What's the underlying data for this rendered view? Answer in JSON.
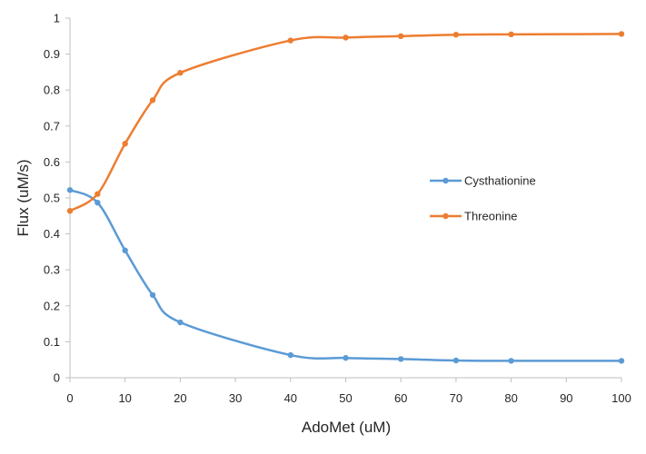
{
  "chart_data": {
    "type": "line",
    "title": "",
    "xlabel": "AdoMet (uM)",
    "ylabel": "Flux (uM/s)",
    "xlim": [
      0,
      100
    ],
    "ylim": [
      0,
      1
    ],
    "xticks": [
      0,
      10,
      20,
      30,
      40,
      50,
      60,
      70,
      80,
      90,
      100
    ],
    "yticks": [
      0,
      0.1,
      0.2,
      0.3,
      0.4,
      0.5,
      0.6,
      0.7,
      0.8,
      0.9,
      1
    ],
    "grid": false,
    "legend_position": "right",
    "x": [
      0,
      5,
      10,
      15,
      20,
      40,
      50,
      60,
      70,
      80,
      100
    ],
    "series": [
      {
        "name": "Cysthationine",
        "color": "#5B9BD5",
        "values": [
          0.522,
          0.487,
          0.354,
          0.23,
          0.154,
          0.063,
          0.055,
          0.052,
          0.048,
          0.047,
          0.047
        ]
      },
      {
        "name": "Threonine",
        "color": "#ED7D31",
        "values": [
          0.464,
          0.511,
          0.651,
          0.772,
          0.848,
          0.938,
          0.946,
          0.95,
          0.954,
          0.955,
          0.956
        ]
      }
    ]
  }
}
